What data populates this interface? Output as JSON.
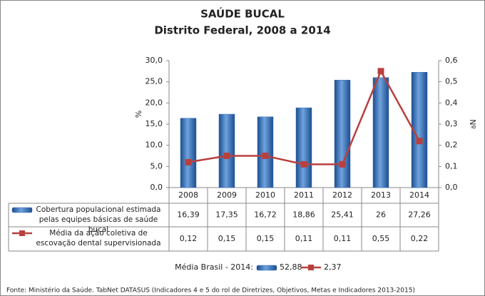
{
  "chart_data": {
    "type": "bar-line",
    "title": "SAÚDE BUCAL",
    "subtitle": "Distrito Federal, 2008 a 2014",
    "y_label": "%",
    "y2_label": "Nº",
    "categories": [
      "2008",
      "2009",
      "2010",
      "2011",
      "2012",
      "2013",
      "2014"
    ],
    "series": [
      {
        "name": "Cobertura populacional estimada pelas equipes básicas de saúde bucal",
        "type": "bar",
        "color": "#3a70b8",
        "values": [
          16.39,
          17.35,
          16.72,
          18.86,
          25.41,
          26,
          27.26
        ],
        "value_labels": [
          "16,39",
          "17,35",
          "16,72",
          "18,86",
          "25,41",
          "26",
          "27,26"
        ]
      },
      {
        "name": "Média da ação coletiva de escovação dental supervisionada",
        "type": "line",
        "axis": "y2",
        "color": "#b8403e",
        "values": [
          0.12,
          0.15,
          0.15,
          0.11,
          0.11,
          0.55,
          0.22
        ],
        "value_labels": [
          "0,12",
          "0,15",
          "0,15",
          "0,11",
          "0,11",
          "0,55",
          "0,22"
        ]
      }
    ],
    "ylim": [
      0,
      30
    ],
    "yticks": [
      {
        "value": 0,
        "label": "0,0"
      },
      {
        "value": 5,
        "label": "5,0"
      },
      {
        "value": 10,
        "label": "10,0"
      },
      {
        "value": 15,
        "label": "15,0"
      },
      {
        "value": 20,
        "label": "20,0"
      },
      {
        "value": 25,
        "label": "25,0"
      },
      {
        "value": 30,
        "label": "30,0"
      }
    ],
    "y2lim": [
      0,
      0.6
    ],
    "y2ticks": [
      {
        "value": 0,
        "label": "0,0"
      },
      {
        "value": 0.1,
        "label": "0,1"
      },
      {
        "value": 0.2,
        "label": "0,2"
      },
      {
        "value": 0.3,
        "label": "0,3"
      },
      {
        "value": 0.4,
        "label": "0,4"
      },
      {
        "value": 0.5,
        "label": "0,5"
      },
      {
        "value": 0.6,
        "label": "0,6"
      }
    ],
    "reference": {
      "label": "Média Brasil - 2014:",
      "values": [
        52.88,
        2.37
      ],
      "value_labels": [
        "52,88",
        "2,37"
      ]
    },
    "source": "Fonte: Ministério da Saúde. TabNet DATASUS (Indicadores 4 e 5 do rol de Diretrizes, Objetivos, Metas e Indicadores 2013-2015)"
  }
}
